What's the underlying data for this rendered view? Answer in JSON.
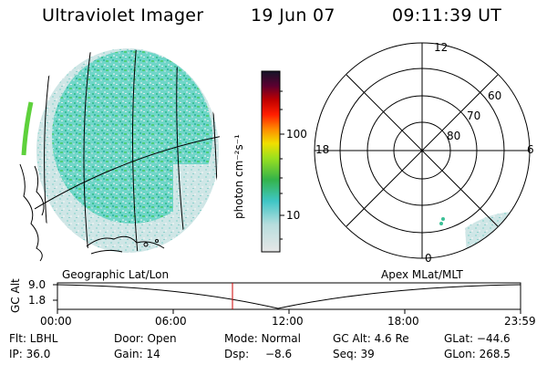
{
  "header": {
    "title": "Ultraviolet Imager",
    "date": "19 Jun 07",
    "time": "09:11:39 UT"
  },
  "colorbar": {
    "unit_label": "photon cm⁻²s⁻¹",
    "ticks": [
      "100",
      "10"
    ]
  },
  "polar_plot": {
    "mlt_labels": [
      "12",
      "18",
      "6",
      "0"
    ],
    "lat_labels": [
      "60",
      "70",
      "80"
    ]
  },
  "projections": {
    "left": "Geographic Lat/Lon",
    "right": "Apex MLat/MLT"
  },
  "altitude_plot": {
    "ylabel": "GC Alt",
    "y_ticks": [
      "9.0",
      "1.8"
    ],
    "x_ticks": [
      "00:00",
      "06:00",
      "12:00",
      "18:00",
      "23:59"
    ],
    "current_time_marker": "09:11:39"
  },
  "status": {
    "flt": "Flt: LBHL",
    "door": "Door: Open",
    "mode": "Mode: Normal",
    "gc_alt": "GC Alt: 4.6 Re",
    "glat": "GLat: −44.6",
    "ip": "IP: 36.0",
    "gain": "Gain: 14",
    "dsp_label": "Dsp:",
    "dsp_value": "−8.6",
    "seq": "Seq: 39",
    "glon": "GLon: 268.5"
  },
  "colors": {
    "colorbar_stops": [
      "#d6d6d6",
      "#3fc6c6",
      "#34b34a",
      "#9ce01e",
      "#f0e000",
      "#ff8a00",
      "#ff1e00",
      "#c00000",
      "#5a0030",
      "#141428"
    ],
    "marker": "#cc0000"
  }
}
